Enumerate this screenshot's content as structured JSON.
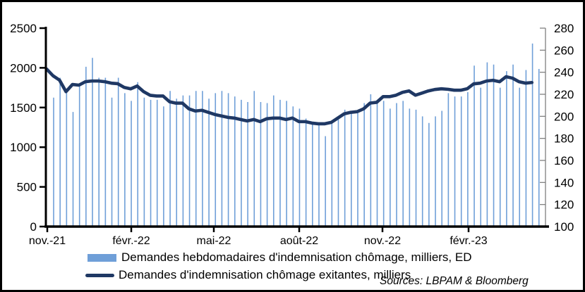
{
  "colors": {
    "bar": "#6F9FD8",
    "line": "#1F3864",
    "axis_left": "#000000",
    "axis_right": "#808080",
    "text": "#000000",
    "frame_border": "#000000",
    "background": "#ffffff"
  },
  "legend": {
    "items": [
      {
        "swatch": "bar-swatch",
        "label": "Demandes hebdomadaires d'indemnisation chômage, milliers, ED"
      },
      {
        "swatch": "line-swatch",
        "label": "Demandes d'indemnisation chômage exitantes, milliers"
      }
    ]
  },
  "source_note": "Sources: LBPAM & Bloomberg",
  "chart_data": {
    "type": "bar+line (dual axis, weekly data)",
    "title": "",
    "x_tick_labels": [
      "nov.-21",
      "févr.-22",
      "mai-22",
      "août-22",
      "nov.-22",
      "févr.-23"
    ],
    "left_axis": {
      "range": [
        0,
        2500
      ],
      "ticks": [
        0,
        500,
        1000,
        1500,
        2000,
        2500
      ]
    },
    "right_axis": {
      "range": [
        100,
        280
      ],
      "ticks": [
        100,
        120,
        140,
        160,
        180,
        200,
        220,
        240,
        260,
        280
      ]
    },
    "grid": false,
    "legend_position": "bottom",
    "series": [
      {
        "name": "Demandes hebdomadaires d'indemnisation chômage, milliers, ED",
        "type": "bar",
        "axis": "right",
        "values": [
          217,
          235,
          223,
          204,
          227,
          245,
          253,
          235,
          235,
          217,
          235,
          221,
          214,
          231,
          217,
          215,
          215,
          209,
          223,
          216,
          219,
          219,
          223,
          223,
          216,
          221,
          223,
          221,
          218,
          215,
          213,
          223,
          213,
          212,
          219,
          215,
          214,
          209,
          207,
          198,
          193,
          193,
          182,
          194,
          197,
          206,
          204,
          204,
          212,
          220,
          213,
          214,
          207,
          212,
          214,
          207,
          206,
          200,
          194,
          200,
          205,
          221,
          218,
          218,
          222,
          246,
          226,
          249,
          247,
          226,
          241,
          247,
          226,
          242,
          266,
          243
        ]
      },
      {
        "name": "Demandes d'indemnisation chômage exitantes, milliers",
        "type": "line",
        "axis": "left",
        "values": [
          1985,
          1900,
          1845,
          1700,
          1790,
          1782,
          1825,
          1834,
          1834,
          1825,
          1807,
          1800,
          1753,
          1735,
          1771,
          1700,
          1654,
          1645,
          1645,
          1573,
          1555,
          1555,
          1483,
          1456,
          1465,
          1439,
          1412,
          1394,
          1376,
          1367,
          1349,
          1331,
          1349,
          1322,
          1358,
          1367,
          1367,
          1349,
          1367,
          1322,
          1322,
          1304,
          1295,
          1295,
          1313,
          1367,
          1421,
          1439,
          1448,
          1484,
          1556,
          1565,
          1637,
          1637,
          1655,
          1691,
          1709,
          1655,
          1682,
          1709,
          1727,
          1736,
          1730,
          1718,
          1718,
          1736,
          1798,
          1807,
          1834,
          1843,
          1825,
          1888,
          1870,
          1825,
          1807,
          1815
        ]
      }
    ]
  }
}
